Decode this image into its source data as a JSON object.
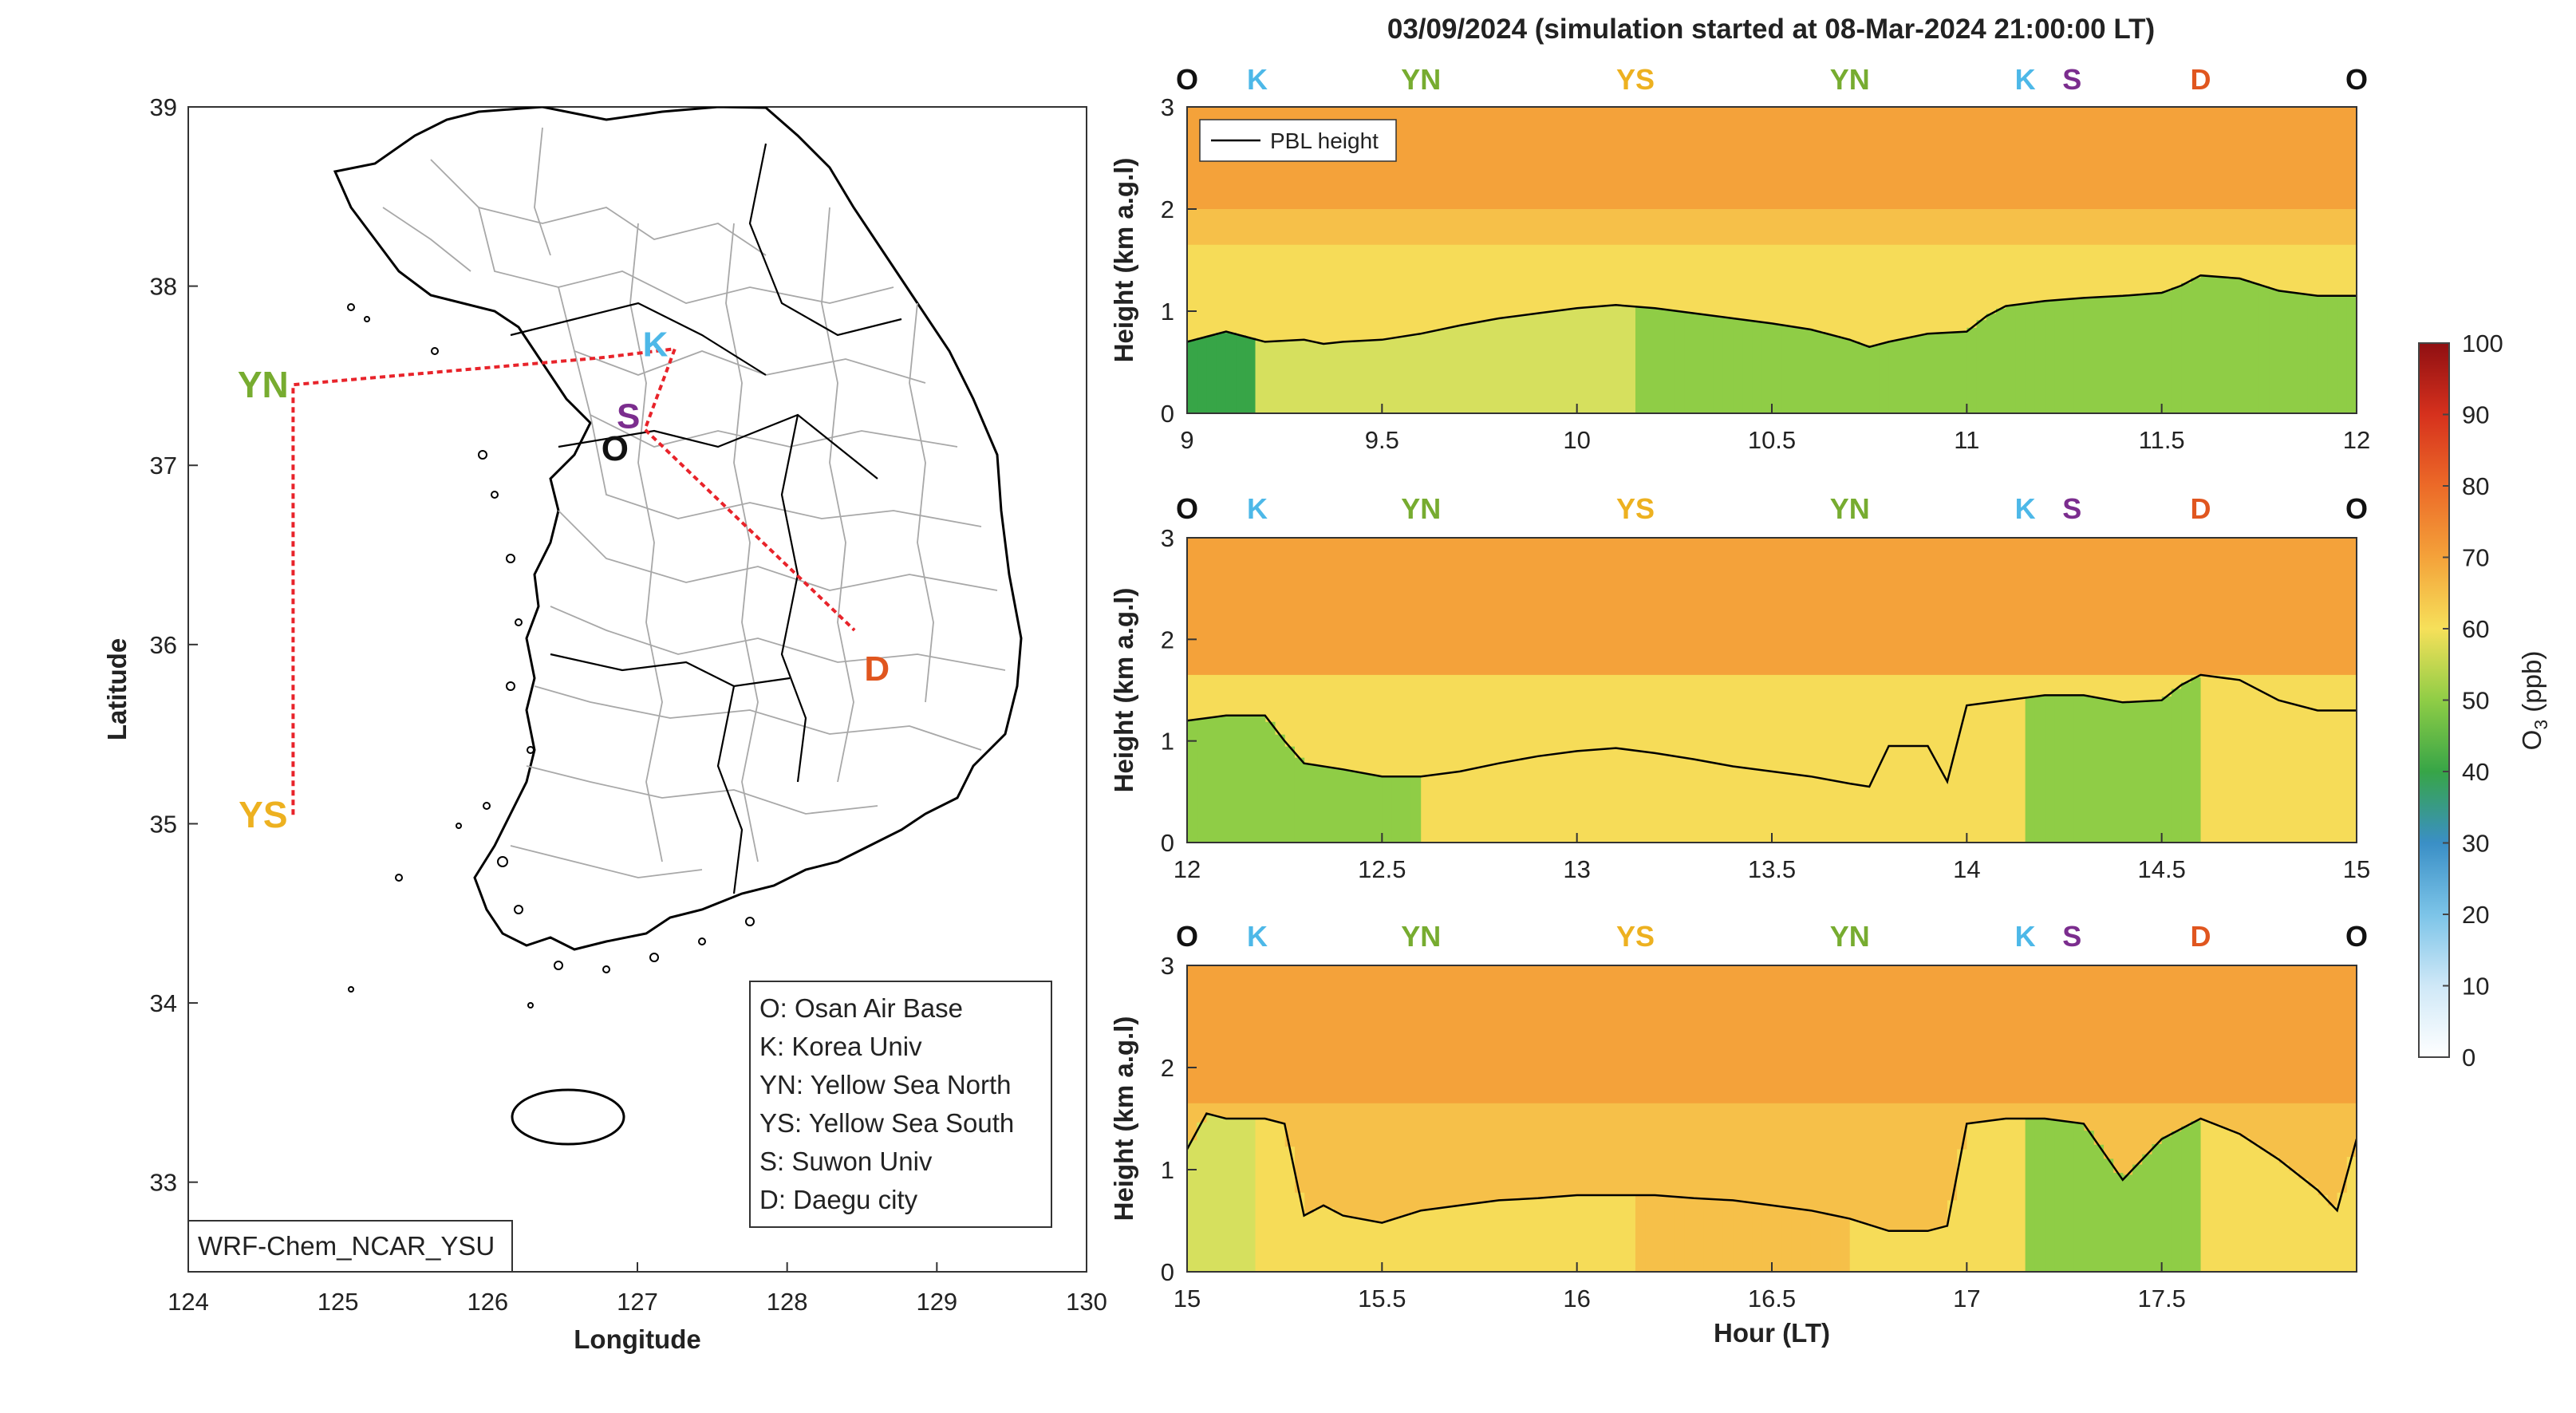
{
  "figure": {
    "title": "03/09/2024 (simulation started at 08-Mar-2024 21:00:00 LT)"
  },
  "map": {
    "xlabel": "Longitude",
    "ylabel": "Latitude",
    "xticks": [
      "124",
      "125",
      "126",
      "127",
      "128",
      "129",
      "130"
    ],
    "yticks": [
      "33",
      "34",
      "35",
      "36",
      "37",
      "38",
      "39"
    ],
    "xlim": [
      124,
      130
    ],
    "ylim": [
      32.5,
      39
    ],
    "model_label": "WRF-Chem_NCAR_YSU",
    "legend": [
      "O: Osan Air Base",
      "K: Korea Univ",
      "YN: Yellow Sea North",
      "YS: Yellow Sea South",
      "S: Suwon Univ",
      "D: Daegu city"
    ],
    "sites": [
      {
        "code": "O",
        "lon": 126.85,
        "lat": 37.1,
        "color": "#111111"
      },
      {
        "code": "K",
        "lon": 127.12,
        "lat": 37.68,
        "color": "#4db8e8"
      },
      {
        "code": "S",
        "lon": 126.94,
        "lat": 37.28,
        "color": "#7b2d8e"
      },
      {
        "code": "D",
        "lon": 128.6,
        "lat": 35.87,
        "color": "#e0561f"
      },
      {
        "code": "YN",
        "lon": 124.5,
        "lat": 37.45,
        "color": "#77ac30"
      },
      {
        "code": "YS",
        "lon": 124.5,
        "lat": 35.05,
        "color": "#edb120"
      }
    ],
    "flight_track": [
      [
        124.7,
        35.05
      ],
      [
        124.7,
        37.45
      ],
      [
        126.75,
        37.6
      ],
      [
        127.25,
        37.65
      ],
      [
        127.05,
        37.2
      ],
      [
        128.45,
        36.08
      ]
    ],
    "track_color": "#e8232a"
  },
  "panels": {
    "ylabel": "Height (km a.g.l)",
    "xlabel": "Hour (LT)",
    "pbl_legend": "PBL height",
    "ylim": [
      0,
      3
    ],
    "yticks": [
      "0",
      "1",
      "2",
      "3"
    ],
    "station_sequence": [
      {
        "code": "O",
        "color": "#111111"
      },
      {
        "code": "K",
        "color": "#4db8e8"
      },
      {
        "code": "YN",
        "color": "#77ac30"
      },
      {
        "code": "YS",
        "color": "#edb120"
      },
      {
        "code": "YN",
        "color": "#77ac30"
      },
      {
        "code": "K",
        "color": "#4db8e8"
      },
      {
        "code": "S",
        "color": "#7b2d8e"
      },
      {
        "code": "D",
        "color": "#e0561f"
      },
      {
        "code": "O",
        "color": "#111111"
      }
    ]
  },
  "colorbar": {
    "label": "O3 (ppb)",
    "ticks": [
      "0",
      "10",
      "20",
      "30",
      "40",
      "50",
      "60",
      "70",
      "80",
      "90",
      "100"
    ],
    "range": [
      0,
      100
    ]
  },
  "chart_data": [
    {
      "type": "line",
      "title": "03/09/2024 (simulation started at 08-Mar-2024 21:00:00 LT)",
      "panel": 1,
      "xlabel": "",
      "ylabel": "Height (km a.g.l)",
      "xlim": [
        9,
        12
      ],
      "ylim": [
        0,
        3
      ],
      "xticks": [
        "9",
        "9.5",
        "10",
        "10.5",
        "11",
        "11.5",
        "12"
      ],
      "station_hours": [
        9,
        9.18,
        9.6,
        10.15,
        10.7,
        11.15,
        11.27,
        11.6,
        12
      ],
      "series": [
        {
          "name": "PBL height",
          "x": [
            9,
            9.05,
            9.1,
            9.15,
            9.2,
            9.3,
            9.35,
            9.4,
            9.5,
            9.6,
            9.7,
            9.8,
            9.9,
            10,
            10.1,
            10.2,
            10.3,
            10.4,
            10.5,
            10.6,
            10.7,
            10.75,
            10.8,
            10.9,
            11,
            11.05,
            11.1,
            11.2,
            11.3,
            11.4,
            11.5,
            11.55,
            11.6,
            11.7,
            11.8,
            11.9,
            12
          ],
          "y": [
            0.7,
            0.75,
            0.8,
            0.75,
            0.7,
            0.72,
            0.68,
            0.7,
            0.72,
            0.78,
            0.86,
            0.93,
            0.98,
            1.03,
            1.06,
            1.03,
            0.98,
            0.93,
            0.88,
            0.82,
            0.72,
            0.65,
            0.7,
            0.78,
            0.8,
            0.95,
            1.05,
            1.1,
            1.13,
            1.15,
            1.18,
            1.25,
            1.35,
            1.32,
            1.2,
            1.15,
            1.15
          ]
        }
      ],
      "o3_field": [
        {
          "band": "0-PBL",
          "o3_ppb": [
            45,
            55,
            55,
            52,
            52,
            48,
            48,
            50,
            50
          ]
        },
        {
          "band": "PBL-1.6",
          "o3_ppb": [
            58,
            57,
            57,
            57,
            57,
            57,
            57,
            57,
            57
          ]
        },
        {
          "band": "1.6-2",
          "o3_ppb": [
            62,
            62,
            62,
            62,
            62,
            62,
            62,
            62,
            62
          ]
        },
        {
          "band": "2-3",
          "o3_ppb": [
            67,
            67,
            67,
            67,
            67,
            67,
            67,
            67,
            67
          ]
        }
      ]
    },
    {
      "type": "line",
      "panel": 2,
      "xlabel": "",
      "ylabel": "Height (km a.g.l)",
      "xlim": [
        12,
        15
      ],
      "ylim": [
        0,
        3
      ],
      "xticks": [
        "12",
        "12.5",
        "13",
        "13.5",
        "14",
        "14.5",
        "15"
      ],
      "station_hours": [
        12,
        12.18,
        12.6,
        13.15,
        13.7,
        14.15,
        14.27,
        14.6,
        15
      ],
      "series": [
        {
          "name": "PBL height",
          "x": [
            12,
            12.1,
            12.2,
            12.25,
            12.3,
            12.4,
            12.5,
            12.6,
            12.7,
            12.8,
            12.9,
            13,
            13.1,
            13.2,
            13.3,
            13.4,
            13.5,
            13.6,
            13.7,
            13.75,
            13.8,
            13.9,
            13.95,
            14,
            14.1,
            14.2,
            14.3,
            14.4,
            14.5,
            14.55,
            14.6,
            14.7,
            14.8,
            14.9,
            15
          ],
          "y": [
            1.2,
            1.25,
            1.25,
            1.0,
            0.78,
            0.72,
            0.65,
            0.65,
            0.7,
            0.78,
            0.85,
            0.9,
            0.93,
            0.88,
            0.82,
            0.75,
            0.7,
            0.65,
            0.58,
            0.55,
            0.95,
            0.95,
            0.6,
            1.35,
            1.4,
            1.45,
            1.45,
            1.38,
            1.4,
            1.55,
            1.65,
            1.6,
            1.4,
            1.3,
            1.3
          ]
        }
      ],
      "o3_field": [
        {
          "band": "0-PBL",
          "o3_ppb": [
            50,
            52,
            58,
            57,
            57,
            50,
            52,
            57,
            57
          ]
        },
        {
          "band": "PBL-1.8",
          "o3_ppb": [
            60,
            60,
            60,
            60,
            60,
            60,
            60,
            60,
            60
          ]
        },
        {
          "band": "1.8-3",
          "o3_ppb": [
            67,
            67,
            67,
            67,
            67,
            67,
            67,
            67,
            67
          ]
        }
      ]
    },
    {
      "type": "line",
      "panel": 3,
      "xlabel": "Hour (LT)",
      "ylabel": "Height (km a.g.l)",
      "xlim": [
        15,
        18
      ],
      "ylim": [
        0,
        3
      ],
      "xticks": [
        "15",
        "15.5",
        "16",
        "16.5",
        "17",
        "17.5"
      ],
      "station_hours": [
        15,
        15.18,
        15.6,
        16.15,
        16.7,
        17.15,
        17.27,
        17.6,
        18
      ],
      "series": [
        {
          "name": "PBL height",
          "x": [
            15,
            15.05,
            15.1,
            15.2,
            15.25,
            15.3,
            15.35,
            15.4,
            15.5,
            15.6,
            15.7,
            15.8,
            15.9,
            16,
            16.1,
            16.2,
            16.3,
            16.4,
            16.5,
            16.6,
            16.7,
            16.8,
            16.9,
            16.95,
            17,
            17.1,
            17.2,
            17.3,
            17.4,
            17.5,
            17.6,
            17.7,
            17.8,
            17.9,
            17.95,
            18
          ],
          "y": [
            1.2,
            1.55,
            1.5,
            1.5,
            1.45,
            0.55,
            0.65,
            0.55,
            0.48,
            0.6,
            0.65,
            0.7,
            0.72,
            0.75,
            0.75,
            0.75,
            0.72,
            0.7,
            0.65,
            0.6,
            0.52,
            0.4,
            0.4,
            0.45,
            1.45,
            1.5,
            1.5,
            1.45,
            0.9,
            1.3,
            1.5,
            1.35,
            1.1,
            0.8,
            0.6,
            1.3
          ]
        }
      ],
      "o3_field": [
        {
          "band": "0-PBL",
          "o3_ppb": [
            55,
            57,
            60,
            63,
            60,
            50,
            48,
            57,
            55
          ]
        },
        {
          "band": "PBL-1.6",
          "o3_ppb": [
            62,
            62,
            62,
            62,
            62,
            62,
            62,
            62,
            62
          ]
        },
        {
          "band": "1.6-3",
          "o3_ppb": [
            67,
            67,
            67,
            67,
            67,
            67,
            67,
            67,
            67
          ]
        }
      ]
    }
  ]
}
